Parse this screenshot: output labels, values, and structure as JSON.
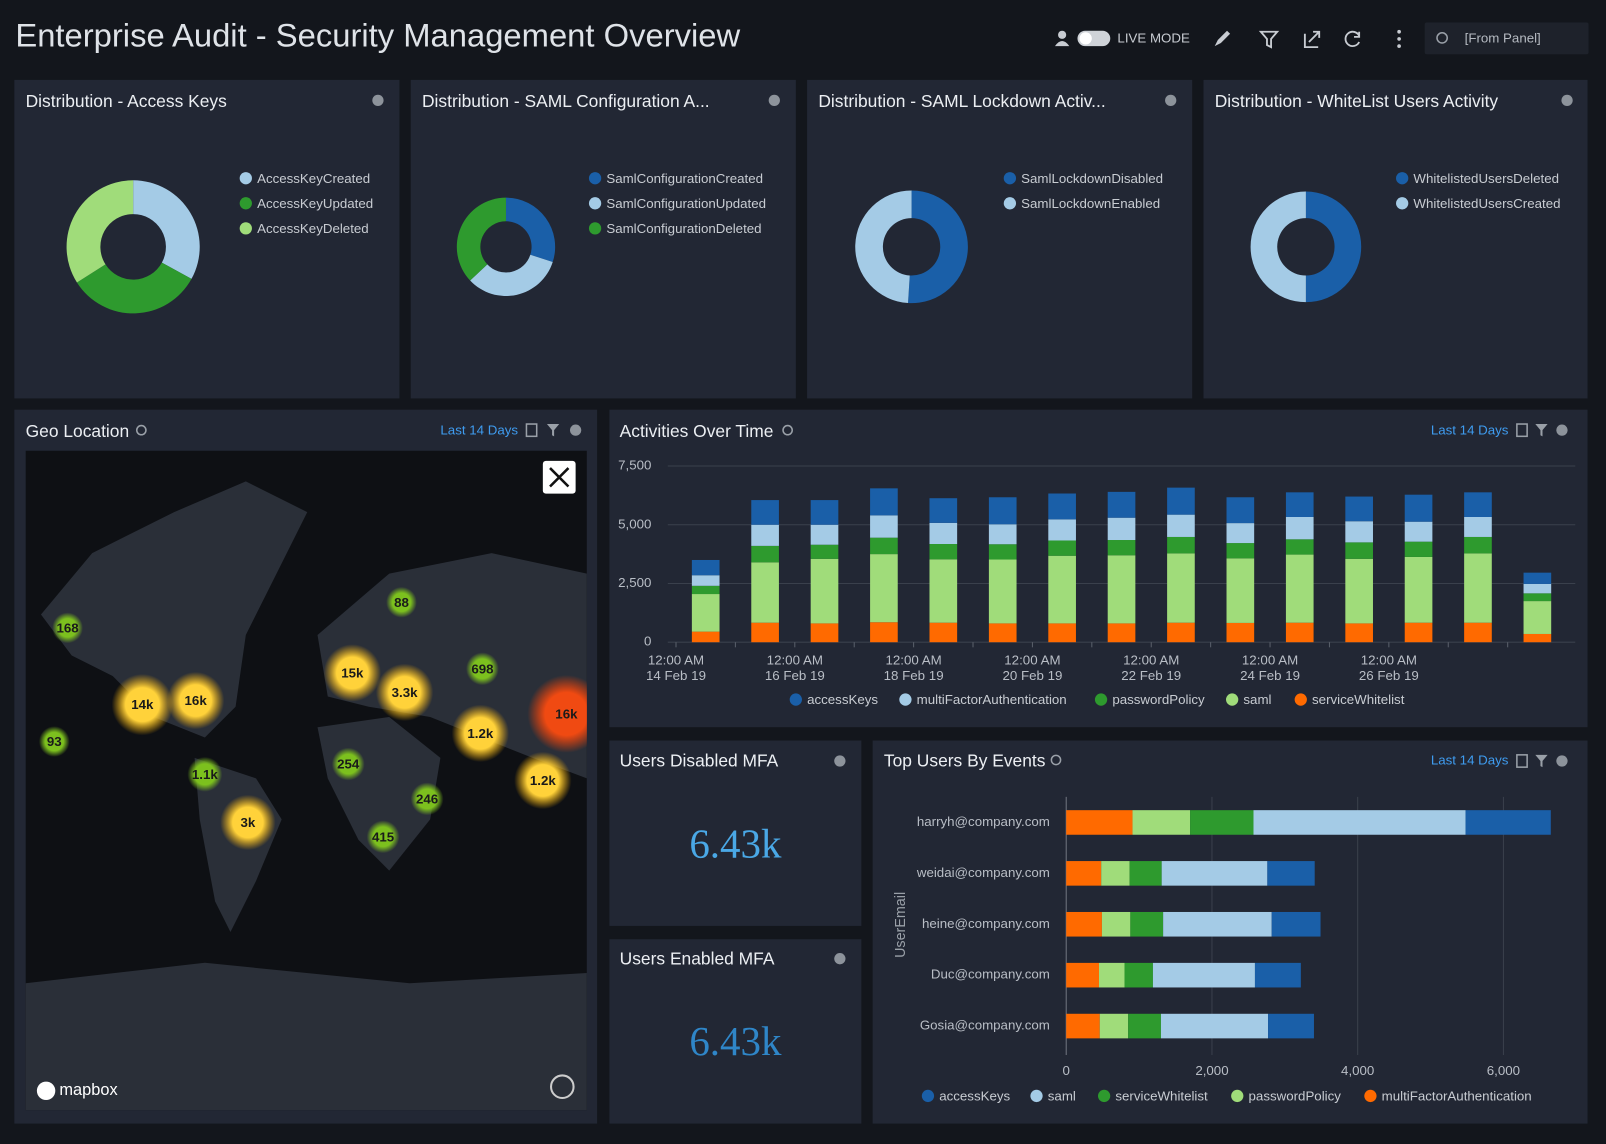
{
  "header": {
    "title": "Enterprise Audit - Security Management Overview",
    "live_mode": "LIVE MODE",
    "time_range": "[From Panel]"
  },
  "chart_data": [
    {
      "type": "donut",
      "title": "Distribution - Access Keys",
      "labels": [
        "AccessKeyCreated",
        "AccessKeyUpdated",
        "AccessKeyDeleted"
      ],
      "values": [
        33,
        33,
        34
      ],
      "colors": [
        "#a4cbe6",
        "#2e9a2e",
        "#a0dc7a"
      ]
    },
    {
      "type": "donut",
      "title": "Distribution - SAML Configuration A...",
      "labels": [
        "SamlConfigurationCreated",
        "SamlConfigurationUpdated",
        "SamlConfigurationDeleted"
      ],
      "values": [
        30,
        33,
        37
      ],
      "colors": [
        "#1a5fa8",
        "#a4cbe6",
        "#2e9a2e"
      ]
    },
    {
      "type": "donut",
      "title": "Distribution - SAML Lockdown Activ...",
      "labels": [
        "SamlLockdownDisabled",
        "SamlLockdownEnabled"
      ],
      "values": [
        51,
        49
      ],
      "colors": [
        "#1a5fa8",
        "#a4cbe6"
      ]
    },
    {
      "type": "donut",
      "title": "Distribution - WhiteList Users Activity",
      "labels": [
        "WhitelistedUsersDeleted",
        "WhitelistedUsersCreated"
      ],
      "values": [
        50,
        50
      ],
      "colors": [
        "#1a5fa8",
        "#a4cbe6"
      ]
    },
    {
      "type": "stacked_bar",
      "title": "Activities Over Time",
      "time_range": "Last 14 Days",
      "categories": [
        "12:00 AM\n14 Feb 19",
        null,
        "12:00 AM\n16 Feb 19",
        null,
        "12:00 AM\n18 Feb 19",
        null,
        "12:00 AM\n20 Feb 19",
        null,
        "12:00 AM\n22 Feb 19",
        null,
        "12:00 AM\n24 Feb 19",
        null,
        "12:00 AM\n26 Feb 19",
        null,
        null
      ],
      "series": [
        {
          "name": "accessKeys",
          "color": "#1a5fa8",
          "values": [
            650,
            1050,
            1050,
            1150,
            1050,
            1150,
            1100,
            1100,
            1150,
            1100,
            1050,
            1050,
            1150,
            1050,
            480
          ]
        },
        {
          "name": "multiFactorAuthentication",
          "color": "#a4cbe6",
          "values": [
            450,
            900,
            850,
            950,
            900,
            850,
            900,
            950,
            950,
            850,
            950,
            900,
            850,
            850,
            400
          ]
        },
        {
          "name": "passwordPolicy",
          "color": "#2e9a2e",
          "values": [
            350,
            700,
            600,
            700,
            650,
            650,
            650,
            650,
            700,
            650,
            650,
            700,
            650,
            700,
            330
          ]
        },
        {
          "name": "saml",
          "color": "#a0dc7a",
          "values": [
            1600,
            2570,
            2750,
            2900,
            2700,
            2720,
            2880,
            2900,
            2950,
            2750,
            2900,
            2750,
            2800,
            2950,
            1400
          ]
        },
        {
          "name": "serviceWhitelist",
          "color": "#ff6a00",
          "values": [
            450,
            830,
            800,
            850,
            830,
            800,
            800,
            800,
            830,
            820,
            830,
            800,
            830,
            830,
            350
          ]
        }
      ],
      "ylim": [
        0,
        7500
      ],
      "yticks": [
        0,
        {
          "value": 2500,
          "label": "2,500"
        },
        {
          "value": 5000,
          "label": "5,000"
        },
        {
          "value": 7500,
          "label": "7,500"
        }
      ],
      "grid": true
    },
    {
      "type": "stacked_barh",
      "title": "Top Users By Events",
      "time_range": "Last 14 Days",
      "y_label": "UserEmail",
      "categories": [
        "harryh@company.com",
        "weidai@company.com",
        "heine@company.com",
        "Duc@company.com",
        "Gosia@company.com"
      ],
      "series": [
        {
          "name": "accessKeys",
          "color": "#1a5fa8",
          "values": [
            1170,
            650,
            670,
            630,
            630
          ]
        },
        {
          "name": "saml",
          "color": "#a4cbe6",
          "values": [
            2910,
            1450,
            1490,
            1400,
            1470
          ]
        },
        {
          "name": "serviceWhitelist",
          "color": "#2e9a2e",
          "values": [
            870,
            440,
            450,
            390,
            450
          ]
        },
        {
          "name": "passwordPolicy",
          "color": "#a0dc7a",
          "values": [
            790,
            390,
            390,
            350,
            390
          ]
        },
        {
          "name": "multiFactorAuthentication",
          "color": "#ff6a00",
          "values": [
            910,
            480,
            490,
            450,
            460
          ]
        }
      ],
      "xlim": [
        0,
        7000
      ],
      "xticks": [
        0,
        {
          "value": 2000,
          "label": "2,000"
        },
        {
          "value": 4000,
          "label": "4,000"
        },
        {
          "value": 6000,
          "label": "6,000"
        }
      ],
      "grid": true
    }
  ],
  "map": {
    "title": "Geo Location",
    "time_range": "Last 14 Days",
    "attribution": "mapbox",
    "markers": [
      "168",
      "93",
      "14k",
      "16k",
      "1.1k",
      "3k",
      "88",
      "15k",
      "3.3k",
      "254",
      "415",
      "246",
      "698",
      "1.2k",
      "1.2k",
      "16k"
    ]
  },
  "stats": [
    {
      "title": "Users Disabled MFA",
      "value": "6.43k"
    },
    {
      "title": "Users Enabled MFA",
      "value": "6.43k"
    }
  ]
}
